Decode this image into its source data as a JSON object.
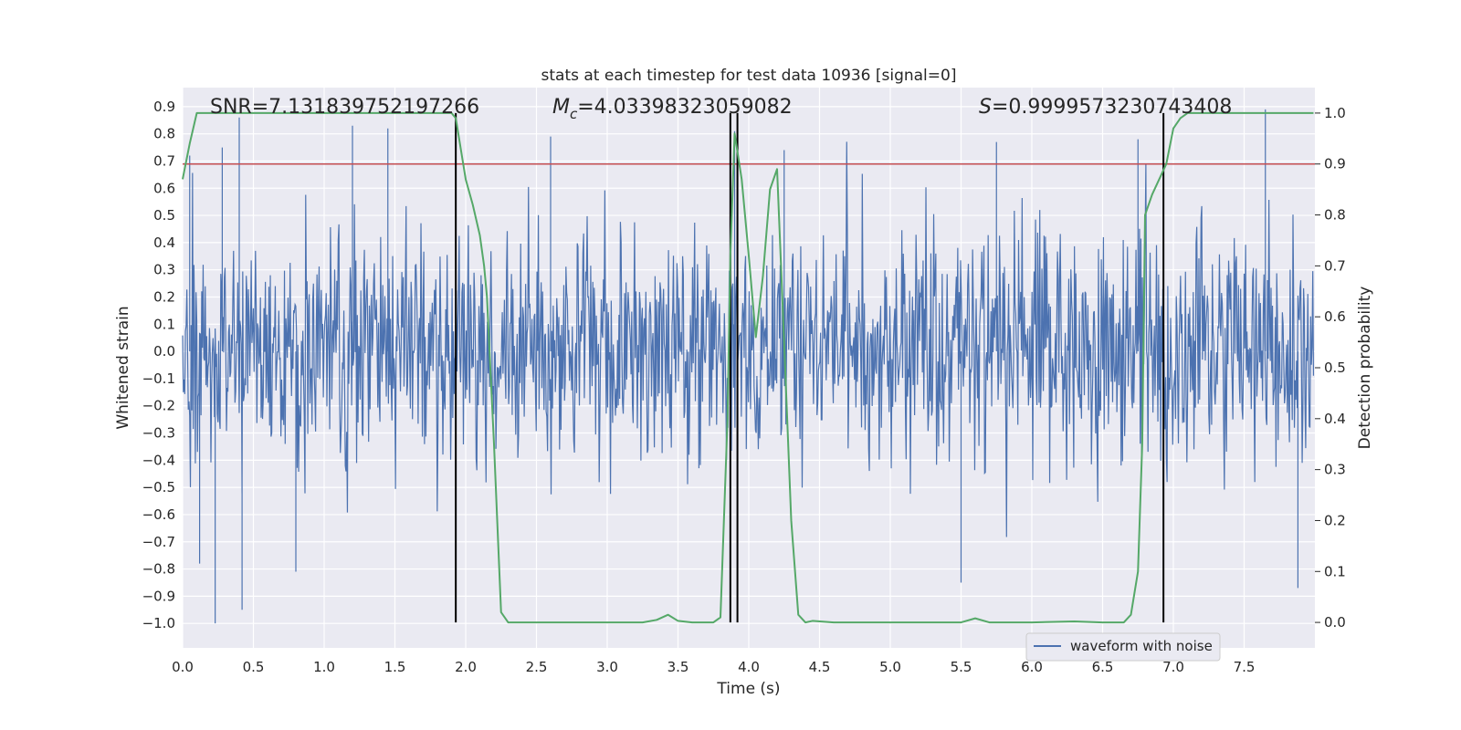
{
  "chart_data": {
    "type": "line",
    "title": "stats at each timestep for test data 10936 [signal=0]",
    "xlabel": "Time (s)",
    "ylabel": "Whitened strain",
    "ylabel_right": "Detection probability",
    "xlim": [
      0.0,
      8.0
    ],
    "ylim": [
      -1.09,
      0.97
    ],
    "ylim_right": [
      -0.05,
      1.05
    ],
    "xticks": [
      "0.0",
      "0.5",
      "1.0",
      "1.5",
      "2.0",
      "2.5",
      "3.0",
      "3.5",
      "4.0",
      "4.5",
      "5.0",
      "5.5",
      "6.0",
      "6.5",
      "7.0",
      "7.5"
    ],
    "yticks": [
      "0.9",
      "0.8",
      "0.7",
      "0.6",
      "0.5",
      "0.4",
      "0.3",
      "0.2",
      "0.1",
      "0.0",
      "−0.1",
      "−0.2",
      "−0.3",
      "−0.4",
      "−0.5",
      "−0.6",
      "−0.7",
      "−0.8",
      "−0.9",
      "−1.0"
    ],
    "yticks_right": [
      "1.0",
      "0.9",
      "0.8",
      "0.7",
      "0.6",
      "0.5",
      "0.4",
      "0.3",
      "0.2",
      "0.1",
      "0.0"
    ],
    "grid": true,
    "annotations": {
      "snr": "SNR=7.131839752197266",
      "mc_symbol": "M",
      "mc_sub": "c",
      "mc_value": "=4.03398323059082",
      "s_symbol": "S",
      "s_value": "=0.9999573230743408"
    },
    "threshold": {
      "value_right": 0.9,
      "color": "#c44e52"
    },
    "vlines": [
      1.93,
      3.87,
      3.92,
      6.93
    ],
    "legend": {
      "entries": [
        "waveform with noise"
      ],
      "position": "lower-right"
    },
    "series": [
      {
        "name": "waveform with noise",
        "axis": "left",
        "color": "#4c72b0",
        "x_range": [
          0.0,
          7.99
        ],
        "envelope_peaks": [
          {
            "x": 0.05,
            "y": 0.72
          },
          {
            "x": 0.12,
            "y": -0.78
          },
          {
            "x": 0.23,
            "y": -1.0
          },
          {
            "x": 0.28,
            "y": 0.75
          },
          {
            "x": 0.4,
            "y": 0.86
          },
          {
            "x": 0.42,
            "y": -0.95
          },
          {
            "x": 0.8,
            "y": -0.81
          },
          {
            "x": 1.2,
            "y": 0.83
          },
          {
            "x": 1.45,
            "y": 0.82
          },
          {
            "x": 2.6,
            "y": 0.79
          },
          {
            "x": 3.9,
            "y": 0.81
          },
          {
            "x": 4.25,
            "y": 0.74
          },
          {
            "x": 5.5,
            "y": -0.85
          },
          {
            "x": 5.75,
            "y": 0.77
          },
          {
            "x": 6.75,
            "y": 0.78
          },
          {
            "x": 7.65,
            "y": 0.89
          },
          {
            "x": 7.88,
            "y": -0.87
          }
        ]
      },
      {
        "name": "detection probability",
        "axis": "right",
        "color": "#55a868",
        "x": [
          0.0,
          0.05,
          0.1,
          0.2,
          0.4,
          0.7,
          1.0,
          1.5,
          1.9,
          1.93,
          2.0,
          2.05,
          2.1,
          2.13,
          2.15,
          2.2,
          2.25,
          2.3,
          2.5,
          3.0,
          3.25,
          3.35,
          3.43,
          3.5,
          3.6,
          3.75,
          3.8,
          3.85,
          3.87,
          3.9,
          3.95,
          4.0,
          4.05,
          4.1,
          4.15,
          4.2,
          4.25,
          4.3,
          4.35,
          4.4,
          4.45,
          4.6,
          5.0,
          5.5,
          5.6,
          5.7,
          6.0,
          6.3,
          6.5,
          6.65,
          6.7,
          6.75,
          6.78,
          6.8,
          6.85,
          6.9,
          6.95,
          7.0,
          7.05,
          7.1,
          7.5,
          7.99
        ],
        "y": [
          0.87,
          0.94,
          1.0,
          1.0,
          1.0,
          1.0,
          1.0,
          1.0,
          1.0,
          0.99,
          0.87,
          0.82,
          0.76,
          0.7,
          0.64,
          0.35,
          0.02,
          0.0,
          0.0,
          0.0,
          0.0,
          0.005,
          0.015,
          0.003,
          0.0,
          0.0,
          0.01,
          0.4,
          0.72,
          0.96,
          0.87,
          0.72,
          0.56,
          0.68,
          0.85,
          0.89,
          0.55,
          0.2,
          0.015,
          0.0,
          0.003,
          0.0,
          0.0,
          0.0,
          0.008,
          0.0,
          0.0,
          0.002,
          0.0,
          0.0,
          0.015,
          0.1,
          0.35,
          0.8,
          0.84,
          0.87,
          0.9,
          0.97,
          0.99,
          1.0,
          1.0,
          1.0
        ]
      }
    ]
  }
}
